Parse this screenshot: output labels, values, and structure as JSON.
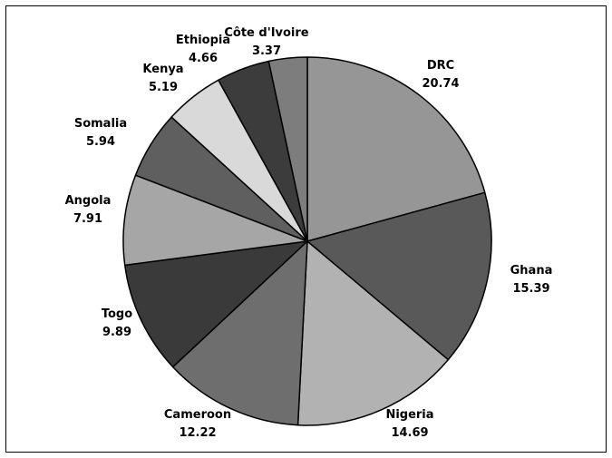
{
  "chart_data": {
    "type": "pie",
    "title": "",
    "slices": [
      {
        "label": "DRC",
        "value": 20.74,
        "value_label": "20.74",
        "color": "#969696"
      },
      {
        "label": "Ghana",
        "value": 15.39,
        "value_label": "15.39",
        "color": "#595959"
      },
      {
        "label": "Nigeria",
        "value": 14.69,
        "value_label": "14.69",
        "color": "#b2b2b2"
      },
      {
        "label": "Cameroon",
        "value": 12.22,
        "value_label": "12.22",
        "color": "#6e6e6e"
      },
      {
        "label": "Togo",
        "value": 9.89,
        "value_label": "9.89",
        "color": "#3a3a3a"
      },
      {
        "label": "Angola",
        "value": 7.91,
        "value_label": "7.91",
        "color": "#a6a6a6"
      },
      {
        "label": "Somalia",
        "value": 5.94,
        "value_label": "5.94",
        "color": "#5f5f5f"
      },
      {
        "label": "Kenya",
        "value": 5.19,
        "value_label": "5.19",
        "color": "#d9d9d9"
      },
      {
        "label": "Ethiopia",
        "value": 4.66,
        "value_label": "4.66",
        "color": "#3c3c3c"
      },
      {
        "label": "Côte d'Ivoire",
        "value": 3.37,
        "value_label": "3.37",
        "color": "#7d7d7d"
      }
    ],
    "start_angle": "12 o'clock",
    "direction": "clockwise",
    "legend": "none"
  }
}
